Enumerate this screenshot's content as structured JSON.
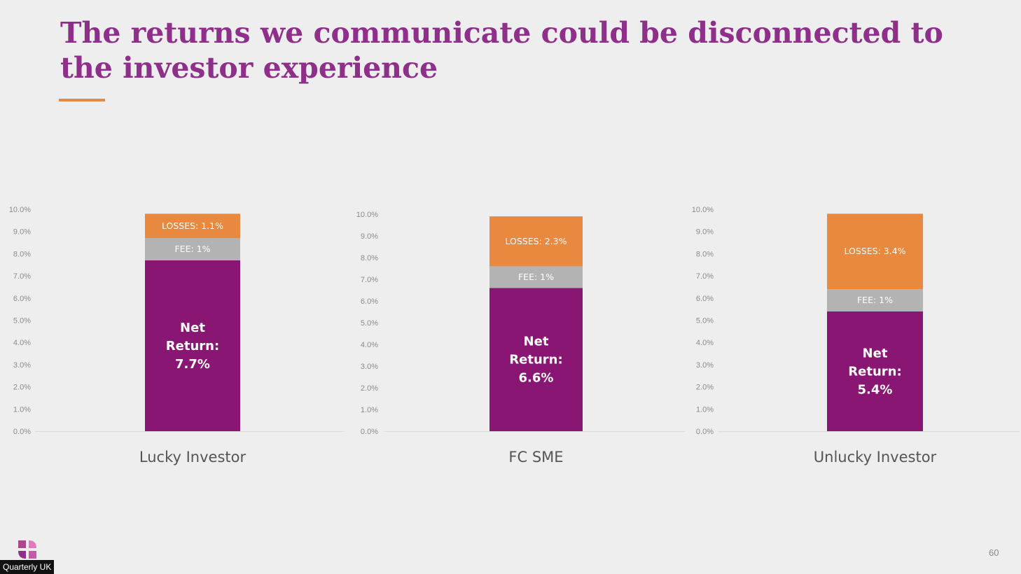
{
  "slide": {
    "title": "The returns we communicate could be disconnected to the investor experience",
    "page_number": "60",
    "footer_label": "Quarterly UK"
  },
  "colors": {
    "title": "#8e2f8a",
    "accent_rule": "#e8893f",
    "net_return": "#8a1673",
    "fee": "#b3b3b3",
    "losses": "#e8893f"
  },
  "chart_data": [
    {
      "type": "bar",
      "stacked": true,
      "categories": [
        "Lucky Investor"
      ],
      "series": [
        {
          "name": "Net Return",
          "values": [
            7.7
          ],
          "label_lines": [
            "Net",
            "Return:",
            "7.7%"
          ]
        },
        {
          "name": "FEE",
          "values": [
            1.0
          ],
          "label_lines": [
            "FEE: 1%"
          ]
        },
        {
          "name": "LOSSES",
          "values": [
            1.1
          ],
          "label_lines": [
            "LOSSES: 1.1%"
          ]
        }
      ],
      "ylim": [
        0,
        10
      ],
      "yticks": [
        "0.0%",
        "1.0%",
        "2.0%",
        "3.0%",
        "4.0%",
        "5.0%",
        "6.0%",
        "7.0%",
        "8.0%",
        "9.0%",
        "10.0%"
      ],
      "grid": false,
      "legend": "none"
    },
    {
      "type": "bar",
      "stacked": true,
      "categories": [
        "FC SME"
      ],
      "series": [
        {
          "name": "Net Return",
          "values": [
            6.6
          ],
          "label_lines": [
            "Net",
            "Return:",
            "6.6%"
          ]
        },
        {
          "name": "FEE",
          "values": [
            1.0
          ],
          "label_lines": [
            "FEE: 1%"
          ]
        },
        {
          "name": "LOSSES",
          "values": [
            2.3
          ],
          "label_lines": [
            "LOSSES: 2.3%"
          ]
        }
      ],
      "ylim": [
        0,
        10
      ],
      "yticks": [
        "0.0%",
        "1.0%",
        "2.0%",
        "3.0%",
        "4.0%",
        "5.0%",
        "6.0%",
        "7.0%",
        "8.0%",
        "9.0%",
        "10.0%"
      ],
      "grid": false,
      "legend": "none"
    },
    {
      "type": "bar",
      "stacked": true,
      "categories": [
        "Unlucky Investor"
      ],
      "series": [
        {
          "name": "Net Return",
          "values": [
            5.4
          ],
          "label_lines": [
            "Net",
            "Return:",
            "5.4%"
          ]
        },
        {
          "name": "FEE",
          "values": [
            1.0
          ],
          "label_lines": [
            "FEE: 1%"
          ]
        },
        {
          "name": "LOSSES",
          "values": [
            3.4
          ],
          "label_lines": [
            "LOSSES: 3.4%"
          ]
        }
      ],
      "ylim": [
        0,
        10
      ],
      "yticks": [
        "0.0%",
        "1.0%",
        "2.0%",
        "3.0%",
        "4.0%",
        "5.0%",
        "6.0%",
        "7.0%",
        "8.0%",
        "9.0%",
        "10.0%"
      ],
      "grid": false,
      "legend": "none"
    }
  ]
}
